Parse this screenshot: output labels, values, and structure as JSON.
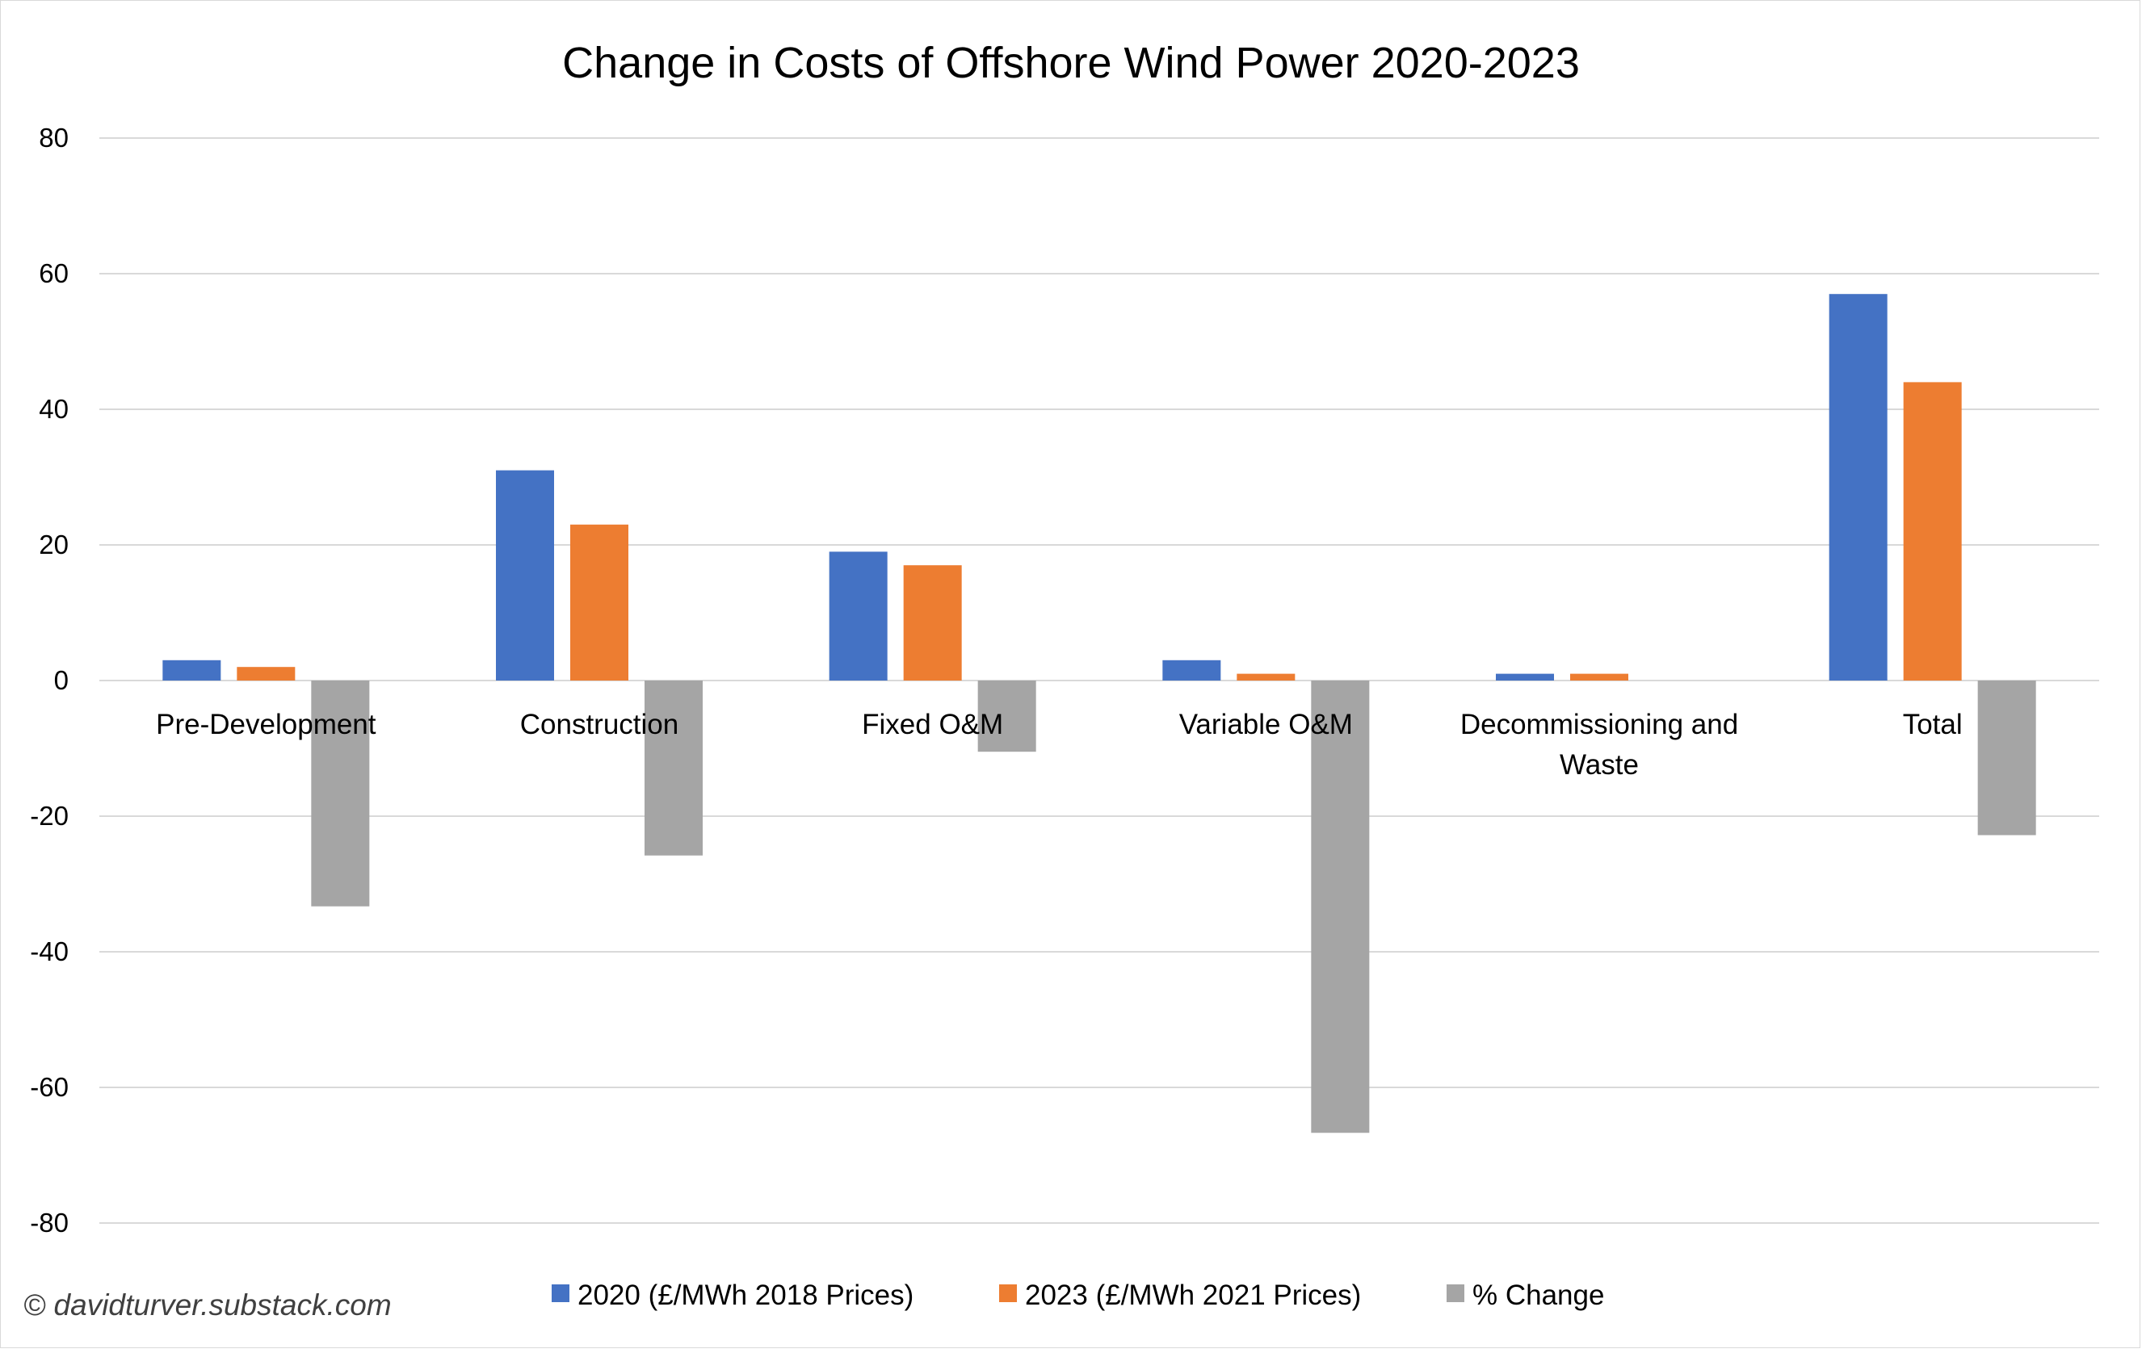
{
  "chart_data": {
    "type": "bar",
    "title": "Change in Costs of Offshore Wind Power 2020-2023",
    "xlabel": "",
    "ylabel": "",
    "ylim": [
      -80,
      80
    ],
    "yticks": [
      80,
      60,
      40,
      20,
      0,
      -20,
      -40,
      -60,
      -80
    ],
    "grid": true,
    "legend_position": "bottom",
    "categories": [
      [
        "Pre-Development"
      ],
      [
        "Construction"
      ],
      [
        "Fixed O&M"
      ],
      [
        "Variable O&M"
      ],
      [
        "Decommissioning and",
        "Waste"
      ],
      [
        "Total"
      ]
    ],
    "series": [
      {
        "name": "2020 (£/MWh 2018 Prices)",
        "color": "#4472c4",
        "values": [
          3,
          31,
          19,
          3,
          1,
          57
        ]
      },
      {
        "name": "2023 (£/MWh 2021 Prices)",
        "color": "#ed7d31",
        "values": [
          2,
          23,
          17,
          1,
          1,
          44
        ]
      },
      {
        "name": "% Change",
        "color": "#a5a5a5",
        "values": [
          -33.3,
          -25.8,
          -10.5,
          -66.7,
          0,
          -22.8
        ]
      }
    ],
    "grid_color": "#d9d9d9"
  },
  "copyright": "© davidturver.substack.com"
}
